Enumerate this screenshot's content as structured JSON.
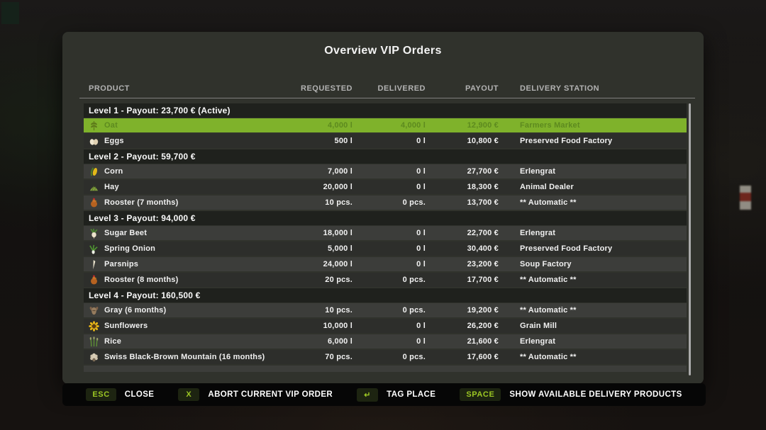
{
  "window": {
    "title": "Overview VIP Orders"
  },
  "table": {
    "columns": [
      "PRODUCT",
      "REQUESTED",
      "DELIVERED",
      "PAYOUT",
      "DELIVERY STATION"
    ],
    "sections": [
      {
        "label": "Level 1 - Payout: 23,700 € (Active)",
        "rows": [
          {
            "icon": "oat-icon",
            "product": "Oat",
            "requested": "4,000 l",
            "delivered": "4,000 l",
            "payout": "12,900 €",
            "station": "Farmers Market",
            "highlighted": true
          },
          {
            "icon": "eggs-icon",
            "product": "Eggs",
            "requested": "500 l",
            "delivered": "0 l",
            "payout": "10,800 €",
            "station": "Preserved Food Factory",
            "highlighted": false
          }
        ]
      },
      {
        "label": "Level 2 - Payout: 59,700 €",
        "rows": [
          {
            "icon": "corn-icon",
            "product": "Corn",
            "requested": "7,000 l",
            "delivered": "0 l",
            "payout": "27,700 €",
            "station": "Erlengrat",
            "highlighted": false
          },
          {
            "icon": "hay-icon",
            "product": "Hay",
            "requested": "20,000 l",
            "delivered": "0 l",
            "payout": "18,300 €",
            "station": "Animal Dealer",
            "highlighted": false
          },
          {
            "icon": "rooster-icon",
            "product": "Rooster (7 months)",
            "requested": "10 pcs.",
            "delivered": "0 pcs.",
            "payout": "13,700 €",
            "station": "** Automatic **",
            "highlighted": false
          }
        ]
      },
      {
        "label": "Level 3 - Payout: 94,000 €",
        "rows": [
          {
            "icon": "sugar-beet-icon",
            "product": "Sugar Beet",
            "requested": "18,000 l",
            "delivered": "0 l",
            "payout": "22,700 €",
            "station": "Erlengrat",
            "highlighted": false
          },
          {
            "icon": "spring-onion-icon",
            "product": "Spring Onion",
            "requested": "5,000 l",
            "delivered": "0 l",
            "payout": "30,400 €",
            "station": "Preserved Food Factory",
            "highlighted": false
          },
          {
            "icon": "parsnip-icon",
            "product": "Parsnips",
            "requested": "24,000 l",
            "delivered": "0 l",
            "payout": "23,200 €",
            "station": "Soup Factory",
            "highlighted": false
          },
          {
            "icon": "rooster-icon",
            "product": "Rooster (8 months)",
            "requested": "20 pcs.",
            "delivered": "0 pcs.",
            "payout": "17,700 €",
            "station": "** Automatic **",
            "highlighted": false
          }
        ]
      },
      {
        "label": "Level 4 - Payout: 160,500 €",
        "rows": [
          {
            "icon": "goat-icon",
            "product": "Gray (6 months)",
            "requested": "10 pcs.",
            "delivered": "0 pcs.",
            "payout": "19,200 €",
            "station": "** Automatic **",
            "highlighted": false
          },
          {
            "icon": "sunflower-icon",
            "product": "Sunflowers",
            "requested": "10,000 l",
            "delivered": "0 l",
            "payout": "26,200 €",
            "station": "Grain Mill",
            "highlighted": false
          },
          {
            "icon": "rice-icon",
            "product": "Rice",
            "requested": "6,000 l",
            "delivered": "0 l",
            "payout": "21,600 €",
            "station": "Erlengrat",
            "highlighted": false
          },
          {
            "icon": "sheep-icon",
            "product": "Swiss Black-Brown Mountain (16 months)",
            "requested": "70 pcs.",
            "delivered": "0 pcs.",
            "payout": "17,600 €",
            "station": "** Automatic **",
            "highlighted": false
          }
        ]
      }
    ]
  },
  "footer": {
    "hints": [
      {
        "key": "ESC",
        "action": "CLOSE"
      },
      {
        "key": "X",
        "action": "ABORT CURRENT VIP ORDER"
      },
      {
        "key": "↵",
        "action": "TAG PLACE"
      },
      {
        "key": "SPACE",
        "action": "SHOW AVAILABLE DELIVERY PRODUCTS"
      }
    ]
  },
  "colors": {
    "highlight_row": "#7fb22b",
    "highlight_text": "#5d8a1f",
    "accent_green": "#9cc723",
    "panel": "#30322c",
    "footer_bar": "#060606"
  }
}
